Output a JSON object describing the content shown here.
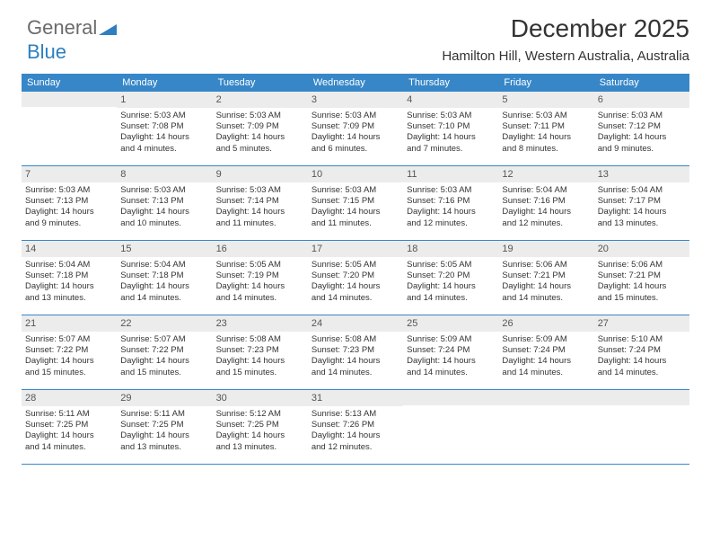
{
  "logo": {
    "part1": "General",
    "part2": "Blue"
  },
  "title": "December 2025",
  "location": "Hamilton Hill, Western Australia, Australia",
  "colors": {
    "headerBar": "#3787c8",
    "dayNumBg": "#ececec",
    "text": "#333333",
    "logoGray": "#6b6b6b",
    "logoBlue": "#2d7fc1"
  },
  "weekdays": [
    "Sunday",
    "Monday",
    "Tuesday",
    "Wednesday",
    "Thursday",
    "Friday",
    "Saturday"
  ],
  "weeks": [
    [
      {
        "n": "",
        "lines": []
      },
      {
        "n": "1",
        "lines": [
          "Sunrise: 5:03 AM",
          "Sunset: 7:08 PM",
          "Daylight: 14 hours",
          "and 4 minutes."
        ]
      },
      {
        "n": "2",
        "lines": [
          "Sunrise: 5:03 AM",
          "Sunset: 7:09 PM",
          "Daylight: 14 hours",
          "and 5 minutes."
        ]
      },
      {
        "n": "3",
        "lines": [
          "Sunrise: 5:03 AM",
          "Sunset: 7:09 PM",
          "Daylight: 14 hours",
          "and 6 minutes."
        ]
      },
      {
        "n": "4",
        "lines": [
          "Sunrise: 5:03 AM",
          "Sunset: 7:10 PM",
          "Daylight: 14 hours",
          "and 7 minutes."
        ]
      },
      {
        "n": "5",
        "lines": [
          "Sunrise: 5:03 AM",
          "Sunset: 7:11 PM",
          "Daylight: 14 hours",
          "and 8 minutes."
        ]
      },
      {
        "n": "6",
        "lines": [
          "Sunrise: 5:03 AM",
          "Sunset: 7:12 PM",
          "Daylight: 14 hours",
          "and 9 minutes."
        ]
      }
    ],
    [
      {
        "n": "7",
        "lines": [
          "Sunrise: 5:03 AM",
          "Sunset: 7:13 PM",
          "Daylight: 14 hours",
          "and 9 minutes."
        ]
      },
      {
        "n": "8",
        "lines": [
          "Sunrise: 5:03 AM",
          "Sunset: 7:13 PM",
          "Daylight: 14 hours",
          "and 10 minutes."
        ]
      },
      {
        "n": "9",
        "lines": [
          "Sunrise: 5:03 AM",
          "Sunset: 7:14 PM",
          "Daylight: 14 hours",
          "and 11 minutes."
        ]
      },
      {
        "n": "10",
        "lines": [
          "Sunrise: 5:03 AM",
          "Sunset: 7:15 PM",
          "Daylight: 14 hours",
          "and 11 minutes."
        ]
      },
      {
        "n": "11",
        "lines": [
          "Sunrise: 5:03 AM",
          "Sunset: 7:16 PM",
          "Daylight: 14 hours",
          "and 12 minutes."
        ]
      },
      {
        "n": "12",
        "lines": [
          "Sunrise: 5:04 AM",
          "Sunset: 7:16 PM",
          "Daylight: 14 hours",
          "and 12 minutes."
        ]
      },
      {
        "n": "13",
        "lines": [
          "Sunrise: 5:04 AM",
          "Sunset: 7:17 PM",
          "Daylight: 14 hours",
          "and 13 minutes."
        ]
      }
    ],
    [
      {
        "n": "14",
        "lines": [
          "Sunrise: 5:04 AM",
          "Sunset: 7:18 PM",
          "Daylight: 14 hours",
          "and 13 minutes."
        ]
      },
      {
        "n": "15",
        "lines": [
          "Sunrise: 5:04 AM",
          "Sunset: 7:18 PM",
          "Daylight: 14 hours",
          "and 14 minutes."
        ]
      },
      {
        "n": "16",
        "lines": [
          "Sunrise: 5:05 AM",
          "Sunset: 7:19 PM",
          "Daylight: 14 hours",
          "and 14 minutes."
        ]
      },
      {
        "n": "17",
        "lines": [
          "Sunrise: 5:05 AM",
          "Sunset: 7:20 PM",
          "Daylight: 14 hours",
          "and 14 minutes."
        ]
      },
      {
        "n": "18",
        "lines": [
          "Sunrise: 5:05 AM",
          "Sunset: 7:20 PM",
          "Daylight: 14 hours",
          "and 14 minutes."
        ]
      },
      {
        "n": "19",
        "lines": [
          "Sunrise: 5:06 AM",
          "Sunset: 7:21 PM",
          "Daylight: 14 hours",
          "and 14 minutes."
        ]
      },
      {
        "n": "20",
        "lines": [
          "Sunrise: 5:06 AM",
          "Sunset: 7:21 PM",
          "Daylight: 14 hours",
          "and 15 minutes."
        ]
      }
    ],
    [
      {
        "n": "21",
        "lines": [
          "Sunrise: 5:07 AM",
          "Sunset: 7:22 PM",
          "Daylight: 14 hours",
          "and 15 minutes."
        ]
      },
      {
        "n": "22",
        "lines": [
          "Sunrise: 5:07 AM",
          "Sunset: 7:22 PM",
          "Daylight: 14 hours",
          "and 15 minutes."
        ]
      },
      {
        "n": "23",
        "lines": [
          "Sunrise: 5:08 AM",
          "Sunset: 7:23 PM",
          "Daylight: 14 hours",
          "and 15 minutes."
        ]
      },
      {
        "n": "24",
        "lines": [
          "Sunrise: 5:08 AM",
          "Sunset: 7:23 PM",
          "Daylight: 14 hours",
          "and 14 minutes."
        ]
      },
      {
        "n": "25",
        "lines": [
          "Sunrise: 5:09 AM",
          "Sunset: 7:24 PM",
          "Daylight: 14 hours",
          "and 14 minutes."
        ]
      },
      {
        "n": "26",
        "lines": [
          "Sunrise: 5:09 AM",
          "Sunset: 7:24 PM",
          "Daylight: 14 hours",
          "and 14 minutes."
        ]
      },
      {
        "n": "27",
        "lines": [
          "Sunrise: 5:10 AM",
          "Sunset: 7:24 PM",
          "Daylight: 14 hours",
          "and 14 minutes."
        ]
      }
    ],
    [
      {
        "n": "28",
        "lines": [
          "Sunrise: 5:11 AM",
          "Sunset: 7:25 PM",
          "Daylight: 14 hours",
          "and 14 minutes."
        ]
      },
      {
        "n": "29",
        "lines": [
          "Sunrise: 5:11 AM",
          "Sunset: 7:25 PM",
          "Daylight: 14 hours",
          "and 13 minutes."
        ]
      },
      {
        "n": "30",
        "lines": [
          "Sunrise: 5:12 AM",
          "Sunset: 7:25 PM",
          "Daylight: 14 hours",
          "and 13 minutes."
        ]
      },
      {
        "n": "31",
        "lines": [
          "Sunrise: 5:13 AM",
          "Sunset: 7:26 PM",
          "Daylight: 14 hours",
          "and 12 minutes."
        ]
      },
      {
        "n": "",
        "lines": []
      },
      {
        "n": "",
        "lines": []
      },
      {
        "n": "",
        "lines": []
      }
    ]
  ]
}
